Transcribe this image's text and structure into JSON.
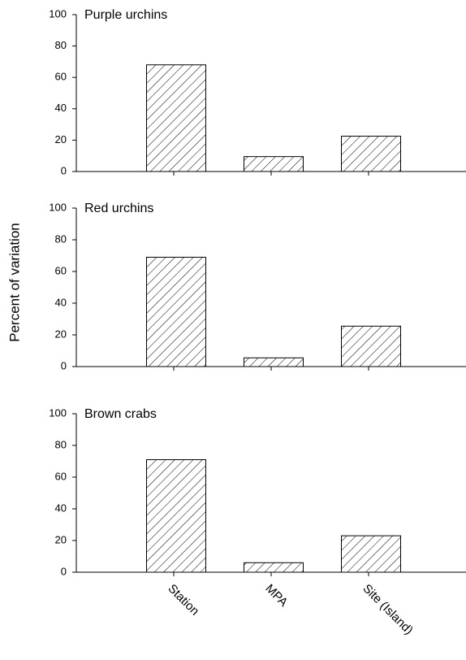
{
  "chart_data": [
    {
      "type": "bar",
      "title": "Purple urchins",
      "values": [
        68,
        9.5,
        22.5
      ],
      "ylim": [
        0,
        100
      ],
      "yticks": [
        0,
        20,
        40,
        60,
        80,
        100
      ]
    },
    {
      "type": "bar",
      "title": "Red urchins",
      "ylabel": "Percent of variation",
      "values": [
        69,
        5.5,
        25.5
      ],
      "ylim": [
        0,
        100
      ],
      "yticks": [
        0,
        20,
        40,
        60,
        80,
        100
      ]
    },
    {
      "type": "bar",
      "title": "Brown crabs",
      "categories": [
        "Station",
        "MPA",
        "Site (Island)"
      ],
      "values": [
        71,
        6,
        23
      ],
      "ylim": [
        0,
        100
      ],
      "yticks": [
        0,
        20,
        40,
        60,
        80,
        100
      ]
    }
  ]
}
